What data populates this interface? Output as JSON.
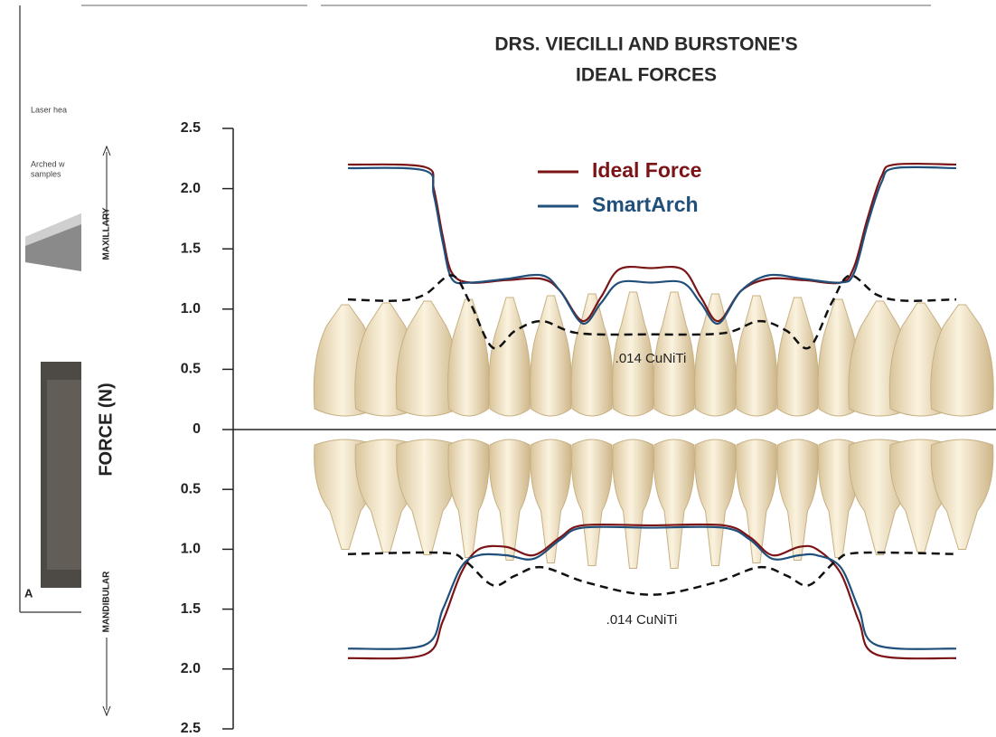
{
  "background_figure": {
    "texts": [
      "Laser hea",
      "Arched w",
      "samples"
    ],
    "panel_label": "A"
  },
  "chart_data": [
    {
      "type": "line",
      "title": [
        "DRS. VIECILLI AND BURSTONE'S",
        "IDEAL FORCES"
      ],
      "ylabel": "FORCE (N)",
      "panel_label": "MAXILLARY",
      "xlim": [
        0,
        100
      ],
      "ylim": [
        0,
        2.5
      ],
      "yticks": [
        0,
        0.5,
        {
          "value": 1,
          "label": "1.0"
        },
        1.5,
        {
          "value": 2,
          "label": "2.0"
        },
        2.5
      ],
      "series": [
        {
          "name": "Ideal Force",
          "color": "#7b1416",
          "x": [
            0,
            12.6,
            14.1,
            15.6,
            17.1,
            20.1,
            26,
            31.9,
            34.9,
            38.6,
            41.6,
            44.6,
            49.8,
            55,
            58,
            60.9,
            64.6,
            69.1,
            75,
            81,
            83.2,
            85.4,
            87.7,
            89.9,
            100
          ],
          "values": [
            2.2,
            2.18,
            2.0,
            1.6,
            1.3,
            1.22,
            1.24,
            1.25,
            1.15,
            0.9,
            1.1,
            1.33,
            1.34,
            1.33,
            1.1,
            0.9,
            1.15,
            1.25,
            1.24,
            1.22,
            1.35,
            1.75,
            2.1,
            2.2,
            2.2
          ]
        },
        {
          "name": "SmartArch",
          "color": "#1f4f7a",
          "x": [
            0,
            12.6,
            14.1,
            15.6,
            17.1,
            20.1,
            26,
            31.9,
            34.9,
            38.6,
            41.6,
            44.6,
            49.8,
            55,
            58,
            60.9,
            64.6,
            69.1,
            75,
            81,
            83.2,
            85.4,
            87.7,
            89.9,
            100
          ],
          "values": [
            2.17,
            2.15,
            1.95,
            1.55,
            1.25,
            1.22,
            1.25,
            1.28,
            1.15,
            0.88,
            1.05,
            1.22,
            1.22,
            1.22,
            1.05,
            0.88,
            1.15,
            1.28,
            1.25,
            1.22,
            1.3,
            1.7,
            2.05,
            2.17,
            2.17
          ]
        },
        {
          "name": ".014 CuNiTi",
          "color": "#111111",
          "dashed": true,
          "x": [
            0,
            8.2,
            12.6,
            17.1,
            20.1,
            23.8,
            27.5,
            31.9,
            37.9,
            49.8,
            61.7,
            67.6,
            72.1,
            75.8,
            79.5,
            82.5,
            86.9,
            91.4,
            100
          ],
          "values": [
            1.08,
            1.07,
            1.12,
            1.28,
            1.05,
            0.68,
            0.82,
            0.9,
            0.8,
            0.79,
            0.8,
            0.9,
            0.82,
            0.68,
            1.05,
            1.28,
            1.12,
            1.07,
            1.08
          ]
        }
      ]
    },
    {
      "type": "line",
      "panel_label": "MANDIBULAR",
      "xlim": [
        0,
        100
      ],
      "ylim": [
        2.5,
        0
      ],
      "yticks": [
        0.5,
        {
          "value": 1,
          "label": "1.0"
        },
        1.5,
        {
          "value": 2,
          "label": "2.0"
        },
        2.5
      ],
      "series": [
        {
          "color": "#7b1416",
          "x": [
            0,
            12.6,
            15.6,
            18.6,
            21.5,
            26,
            30.5,
            34.9,
            38.6,
            49.8,
            61.7,
            66.1,
            69.8,
            74.2,
            77.1,
            81,
            84,
            86.9,
            100
          ],
          "values": [
            1.91,
            1.88,
            1.6,
            1.2,
            1.0,
            0.98,
            1.05,
            0.9,
            0.8,
            0.8,
            0.8,
            0.9,
            1.05,
            0.98,
            1.0,
            1.2,
            1.6,
            1.88,
            1.91
          ]
        },
        {
          "color": "#1f4f7a",
          "x": [
            0,
            12.6,
            15.6,
            18.6,
            21.5,
            26,
            30.5,
            34.9,
            38.6,
            49.8,
            61.7,
            66.1,
            69.8,
            74.2,
            77.1,
            81,
            84,
            86.9,
            100
          ],
          "values": [
            1.83,
            1.8,
            1.5,
            1.15,
            1.05,
            1.05,
            1.08,
            0.92,
            0.82,
            0.82,
            0.82,
            0.92,
            1.08,
            1.05,
            1.05,
            1.15,
            1.5,
            1.8,
            1.83
          ]
        },
        {
          "name": ".014 CuNiTi",
          "color": "#111111",
          "dashed": true,
          "x": [
            0,
            15.6,
            19.3,
            23.8,
            27.5,
            31.9,
            39.4,
            49.8,
            60.2,
            67.6,
            72.1,
            75.8,
            80.2,
            84,
            100
          ],
          "values": [
            1.04,
            1.03,
            1.1,
            1.3,
            1.22,
            1.15,
            1.28,
            1.38,
            1.28,
            1.15,
            1.22,
            1.3,
            1.1,
            1.03,
            1.04
          ]
        }
      ]
    }
  ]
}
